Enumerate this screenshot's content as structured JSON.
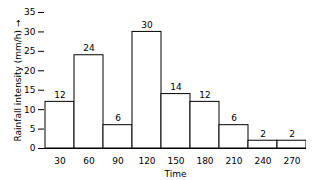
{
  "chart_data": {
    "type": "bar",
    "x_label": "Time",
    "y_label": "Rainfall intensity (mm/h)",
    "categories": [
      "30",
      "60",
      "90",
      "120",
      "150",
      "180",
      "210",
      "240",
      "270"
    ],
    "values": [
      12,
      24,
      6,
      30,
      14,
      12,
      6,
      2,
      2
    ],
    "color": "#ffffff",
    "ylim": [
      0,
      35
    ],
    "yticks": [
      0,
      5,
      10,
      15,
      20,
      25,
      30,
      35
    ],
    "data_labels": true,
    "grid": false
  }
}
